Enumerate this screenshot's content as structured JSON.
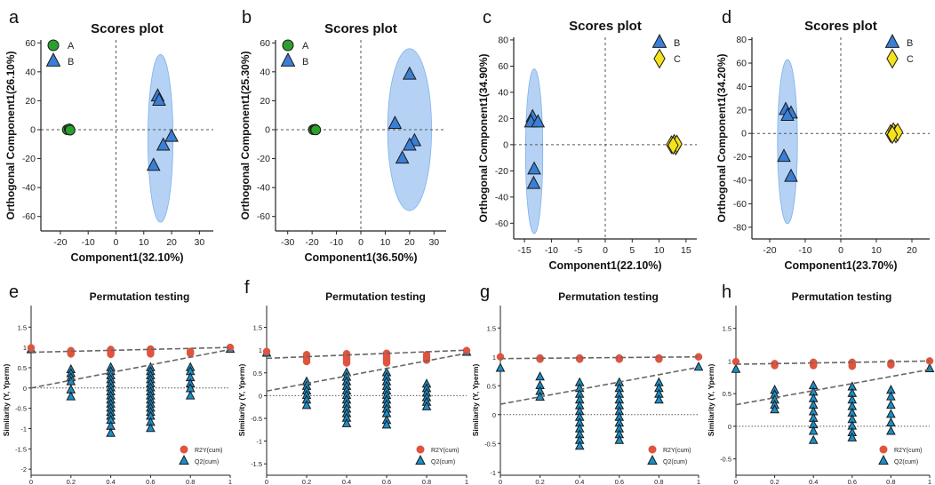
{
  "figure": {
    "panel_letters": [
      "a",
      "b",
      "c",
      "d",
      "e",
      "f",
      "g",
      "h"
    ]
  },
  "chart_data": [
    {
      "panel": "a",
      "type": "scatter",
      "title": "Scores plot",
      "xlabel": "Component1(32.10%)",
      "ylabel": "Orthogonal Component1(26.10%)",
      "xlim": [
        -27,
        35
      ],
      "ylim": [
        -70,
        62
      ],
      "xticks": [
        -20,
        -10,
        0,
        10,
        20,
        30
      ],
      "yticks": [
        -60,
        -40,
        -20,
        0,
        20,
        40,
        60
      ],
      "ellipse": {
        "cx": 16,
        "cy": -6,
        "rx": 4.5,
        "ry": 58
      },
      "legend": [
        "A",
        "B"
      ],
      "series": [
        {
          "name": "A",
          "marker": "circle",
          "color": "#2ca02c",
          "points": [
            [
              -17.5,
              0
            ],
            [
              -16.8,
              0.5
            ],
            [
              -16.5,
              -0.3
            ]
          ]
        },
        {
          "name": "B",
          "marker": "triangle",
          "color": "#3a7fd5",
          "points": [
            [
              15,
              23
            ],
            [
              15.5,
              20
            ],
            [
              20,
              -5
            ],
            [
              17,
              -11
            ],
            [
              13.5,
              -25
            ]
          ]
        }
      ]
    },
    {
      "panel": "b",
      "type": "scatter",
      "title": "Scores plot",
      "xlabel": "Component1(36.50%)",
      "ylabel": "Orthogonal Component1(25.30%)",
      "xlim": [
        -35,
        35
      ],
      "ylim": [
        -70,
        62
      ],
      "xticks": [
        -30,
        -20,
        -10,
        0,
        10,
        20,
        30
      ],
      "yticks": [
        -60,
        -40,
        -20,
        0,
        20,
        40,
        60
      ],
      "ellipse": {
        "cx": 20,
        "cy": 0,
        "rx": 9,
        "ry": 56
      },
      "legend": [
        "A",
        "B"
      ],
      "series": [
        {
          "name": "A",
          "marker": "circle",
          "color": "#2ca02c",
          "points": [
            [
              -19.5,
              0
            ],
            [
              -18.8,
              0.3
            ],
            [
              -18.5,
              -0.2
            ]
          ]
        },
        {
          "name": "B",
          "marker": "triangle",
          "color": "#3a7fd5",
          "points": [
            [
              20,
              38
            ],
            [
              14,
              4
            ],
            [
              22,
              -8
            ],
            [
              20,
              -11
            ],
            [
              17,
              -20
            ]
          ]
        }
      ]
    },
    {
      "panel": "c",
      "type": "scatter",
      "title": "Scores plot",
      "xlabel": "Component1(22.10%)",
      "ylabel": "Orthogonal Component1(34.90%)",
      "xlim": [
        -17,
        17
      ],
      "ylim": [
        -72,
        82
      ],
      "xticks": [
        -15,
        -10,
        -5,
        0,
        5,
        10,
        15
      ],
      "yticks": [
        -60,
        -40,
        -20,
        0,
        20,
        40,
        60,
        80
      ],
      "ellipse": {
        "cx": -13.2,
        "cy": -5,
        "rx": 1.6,
        "ry": 63
      },
      "legend": [
        "B",
        "C"
      ],
      "series": [
        {
          "name": "B",
          "marker": "triangle",
          "color": "#3a7fd5",
          "points": [
            [
              -13.5,
              21
            ],
            [
              -13.8,
              17
            ],
            [
              -12.5,
              17
            ],
            [
              -13.2,
              -19
            ],
            [
              -13.3,
              -30
            ]
          ]
        },
        {
          "name": "C",
          "marker": "diamond",
          "color": "#f5e21c",
          "points": [
            [
              12.3,
              0
            ],
            [
              12.8,
              1
            ],
            [
              13.1,
              -1
            ],
            [
              13.3,
              0.5
            ],
            [
              12.6,
              -0.5
            ]
          ]
        }
      ]
    },
    {
      "panel": "d",
      "type": "scatter",
      "title": "Scores plot",
      "xlabel": "Component1(23.70%)",
      "ylabel": "Orthogonal Component1(34.20%)",
      "xlim": [
        -25,
        25
      ],
      "ylim": [
        -90,
        82
      ],
      "xticks": [
        -20,
        -10,
        0,
        10,
        20
      ],
      "yticks": [
        -80,
        -60,
        -40,
        -20,
        0,
        20,
        40,
        60,
        80
      ],
      "ellipse": {
        "cx": -15,
        "cy": -7,
        "rx": 2.8,
        "ry": 70
      },
      "legend": [
        "B",
        "C"
      ],
      "series": [
        {
          "name": "B",
          "marker": "triangle",
          "color": "#3a7fd5",
          "points": [
            [
              -15.5,
              20
            ],
            [
              -14,
              17
            ],
            [
              -15,
              15
            ],
            [
              -16,
              -20
            ],
            [
              -14,
              -37
            ]
          ]
        },
        {
          "name": "C",
          "marker": "diamond",
          "color": "#f5e21c",
          "points": [
            [
              14,
              0
            ],
            [
              14.8,
              1.5
            ],
            [
              15.5,
              -0.5
            ],
            [
              16,
              1
            ],
            [
              14.5,
              -1
            ]
          ]
        }
      ]
    },
    {
      "panel": "e",
      "type": "scatter",
      "title": "Permutation testing",
      "xlabel": "",
      "ylabel": "Similarity (Y, Yperm)",
      "xlim": [
        0,
        1
      ],
      "ylim": [
        -2.15,
        1.55
      ],
      "xticks": [
        "0",
        "0.2",
        "0.4",
        "0.6",
        "0.8",
        "1"
      ],
      "yticks": [
        "1.5",
        "1",
        "0.5",
        "0",
        "-0.5",
        "-1",
        "-1.5",
        "-2"
      ],
      "legend": [
        "R2Y(cum)",
        "Q2(cum)"
      ],
      "r2_line": [
        0.88,
        1.0
      ],
      "q2_line": [
        0.0,
        0.95
      ],
      "r2_groups": [
        [
          0,
          [
            0.99
          ]
        ],
        [
          0.2,
          [
            0.92,
            0.87,
            0.84
          ]
        ],
        [
          0.4,
          [
            0.95,
            0.92,
            0.89,
            0.86,
            0.83
          ]
        ],
        [
          0.6,
          [
            0.96,
            0.93,
            0.9,
            0.87,
            0.84
          ]
        ],
        [
          0.8,
          [
            0.9,
            0.85
          ]
        ],
        [
          1,
          [
            1.0
          ]
        ]
      ],
      "q2_groups": [
        [
          0,
          [
            0.94
          ]
        ],
        [
          0.2,
          [
            0.45,
            0.35,
            0.25,
            0.15,
            -0.05,
            -0.22
          ]
        ],
        [
          0.4,
          [
            0.5,
            0.4,
            0.3,
            0.2,
            0.1,
            0.0,
            -0.1,
            -0.2,
            -0.3,
            -0.4,
            -0.5,
            -0.6,
            -0.7,
            -0.8,
            -0.95,
            -1.12
          ]
        ],
        [
          0.6,
          [
            0.5,
            0.4,
            0.3,
            0.2,
            0.1,
            0.0,
            -0.1,
            -0.2,
            -0.3,
            -0.4,
            -0.5,
            -0.6,
            -0.7,
            -0.85,
            -1.0
          ]
        ],
        [
          0.8,
          [
            0.5,
            0.4,
            0.25,
            0.1,
            -0.02,
            -0.2
          ]
        ],
        [
          1,
          [
            0.95
          ]
        ]
      ]
    },
    {
      "panel": "f",
      "type": "scatter",
      "title": "Permutation testing",
      "xlabel": "",
      "ylabel": "Similarity (Y, Yperm)",
      "xlim": [
        0,
        1
      ],
      "ylim": [
        -1.75,
        1.55
      ],
      "xticks": [
        "0",
        "0.2",
        "0.4",
        "0.6",
        "0.8",
        "1"
      ],
      "yticks": [
        "1.5",
        "1",
        "0.5",
        "0",
        "-0.5",
        "-1",
        "-1.5"
      ],
      "legend": [
        "R2Y(cum)",
        "Q2(cum)"
      ],
      "r2_line": [
        0.82,
        1.0
      ],
      "q2_line": [
        0.1,
        0.93
      ],
      "r2_groups": [
        [
          0,
          [
            0.97
          ]
        ],
        [
          0.2,
          [
            0.9,
            0.85,
            0.8,
            0.75
          ]
        ],
        [
          0.4,
          [
            0.92,
            0.88,
            0.84,
            0.8,
            0.76,
            0.72
          ]
        ],
        [
          0.6,
          [
            0.93,
            0.89,
            0.85,
            0.81,
            0.77,
            0.72
          ]
        ],
        [
          0.8,
          [
            0.9,
            0.84,
            0.78
          ]
        ],
        [
          1,
          [
            0.99
          ]
        ]
      ],
      "q2_groups": [
        [
          0,
          [
            0.93
          ]
        ],
        [
          0.2,
          [
            0.3,
            0.2,
            0.1,
            0.0,
            -0.1,
            -0.22
          ]
        ],
        [
          0.4,
          [
            0.5,
            0.4,
            0.3,
            0.2,
            0.1,
            0.0,
            -0.1,
            -0.2,
            -0.3,
            -0.4,
            -0.5,
            -0.62
          ]
        ],
        [
          0.6,
          [
            0.5,
            0.4,
            0.3,
            0.2,
            0.1,
            0.0,
            -0.1,
            -0.2,
            -0.3,
            -0.4,
            -0.55,
            -0.65
          ]
        ],
        [
          0.8,
          [
            0.25,
            0.15,
            0.05,
            -0.05,
            -0.15,
            -0.25
          ]
        ],
        [
          1,
          [
            0.95
          ]
        ]
      ]
    },
    {
      "panel": "g",
      "type": "scatter",
      "title": "Permutation testing",
      "xlabel": "",
      "ylabel": "Similarity (Y, Yperm)",
      "xlim": [
        0,
        1
      ],
      "ylim": [
        -1.05,
        1.55
      ],
      "xticks": [
        "0",
        "0.2",
        "0.4",
        "0.6",
        "0.8",
        "1"
      ],
      "yticks": [
        "1.5",
        "1",
        "0.5",
        "0",
        "-0.5",
        "-1"
      ],
      "legend": [
        "R2Y(cum)",
        "Q2(cum)"
      ],
      "r2_line": [
        0.97,
        1.0
      ],
      "q2_line": [
        0.18,
        0.82
      ],
      "r2_groups": [
        [
          0,
          [
            1.0
          ]
        ],
        [
          0.2,
          [
            0.98,
            0.96
          ]
        ],
        [
          0.4,
          [
            0.98,
            0.96
          ]
        ],
        [
          0.6,
          [
            0.98,
            0.96
          ]
        ],
        [
          0.8,
          [
            0.98,
            0.96
          ]
        ],
        [
          1,
          [
            1.0
          ]
        ]
      ],
      "q2_groups": [
        [
          0,
          [
            0.8
          ]
        ],
        [
          0.2,
          [
            0.65,
            0.5,
            0.4,
            0.3
          ]
        ],
        [
          0.4,
          [
            0.55,
            0.45,
            0.35,
            0.25,
            0.15,
            0.05,
            -0.05,
            -0.15,
            -0.25,
            -0.35,
            -0.45,
            -0.55
          ]
        ],
        [
          0.6,
          [
            0.55,
            0.45,
            0.35,
            0.25,
            0.15,
            0.05,
            -0.05,
            -0.15,
            -0.25,
            -0.35,
            -0.45
          ]
        ],
        [
          0.8,
          [
            0.55,
            0.45,
            0.35,
            0.25
          ]
        ],
        [
          1,
          [
            0.82
          ]
        ]
      ]
    },
    {
      "panel": "h",
      "type": "scatter",
      "title": "Permutation testing",
      "xlabel": "",
      "ylabel": "Similarity (Y, Yperm)",
      "xlim": [
        0,
        1
      ],
      "ylim": [
        -0.75,
        1.55
      ],
      "xticks": [
        "0",
        "0.2",
        "0.4",
        "0.6",
        "0.8",
        "1"
      ],
      "yticks": [
        "1.5",
        "1",
        "0.5",
        "0",
        "-0.5"
      ],
      "legend": [
        "R2Y(cum)",
        "Q2(cum)"
      ],
      "r2_line": [
        0.95,
        1.0
      ],
      "q2_line": [
        0.33,
        0.87
      ],
      "r2_groups": [
        [
          0,
          [
            0.99
          ]
        ],
        [
          0.2,
          [
            0.96,
            0.93
          ]
        ],
        [
          0.4,
          [
            0.98,
            0.95,
            0.93
          ]
        ],
        [
          0.6,
          [
            0.98,
            0.95,
            0.92
          ]
        ],
        [
          0.8,
          [
            0.97,
            0.94
          ]
        ],
        [
          1,
          [
            1.0
          ]
        ]
      ],
      "q2_groups": [
        [
          0,
          [
            0.87
          ]
        ],
        [
          0.2,
          [
            0.55,
            0.48,
            0.4,
            0.32,
            0.25
          ]
        ],
        [
          0.4,
          [
            0.62,
            0.52,
            0.42,
            0.32,
            0.22,
            0.12,
            0.02,
            -0.08,
            -0.22
          ]
        ],
        [
          0.6,
          [
            0.6,
            0.5,
            0.4,
            0.3,
            0.2,
            0.1,
            0.0,
            -0.1,
            -0.18
          ]
        ],
        [
          0.8,
          [
            0.55,
            0.45,
            0.32,
            0.18,
            0.05,
            -0.08
          ]
        ],
        [
          1,
          [
            0.88
          ]
        ]
      ]
    }
  ]
}
